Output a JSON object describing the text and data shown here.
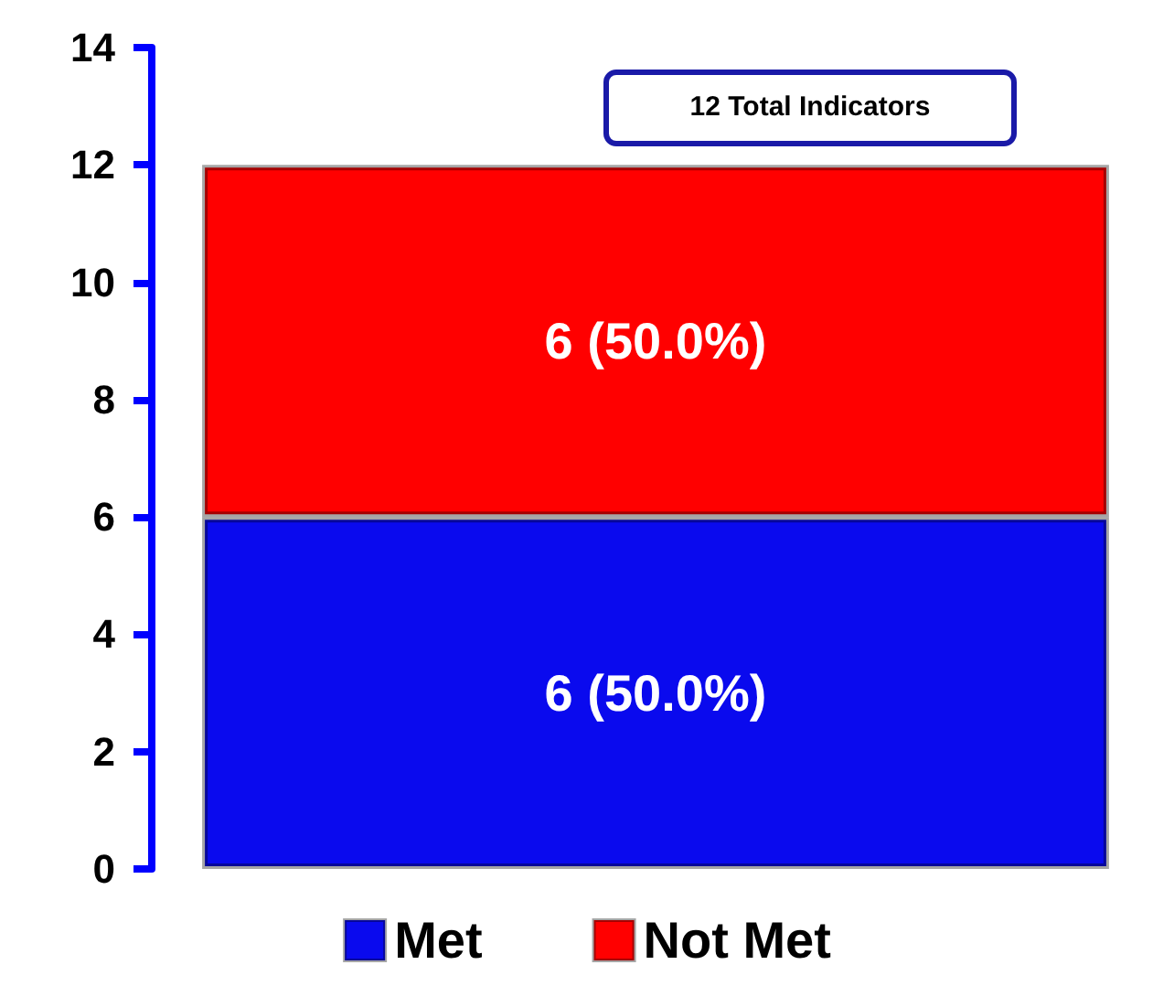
{
  "chart_data": {
    "type": "bar",
    "stacked": true,
    "categories": [
      null
    ],
    "series": [
      {
        "name": "Met",
        "color": "#0a0aee",
        "values": [
          6
        ],
        "value_labels": [
          "6 (50.0%)"
        ]
      },
      {
        "name": "Not Met",
        "color": "#ff0000",
        "values": [
          6
        ],
        "value_labels": [
          "6 (50.0%)"
        ]
      }
    ],
    "totals": [
      "12 Total Indicators"
    ],
    "ylim": [
      0,
      14
    ],
    "yticks": [
      0,
      2,
      4,
      6,
      8,
      10,
      12,
      14
    ],
    "grid": false,
    "legend": "bottom",
    "tick_labels": "y"
  }
}
